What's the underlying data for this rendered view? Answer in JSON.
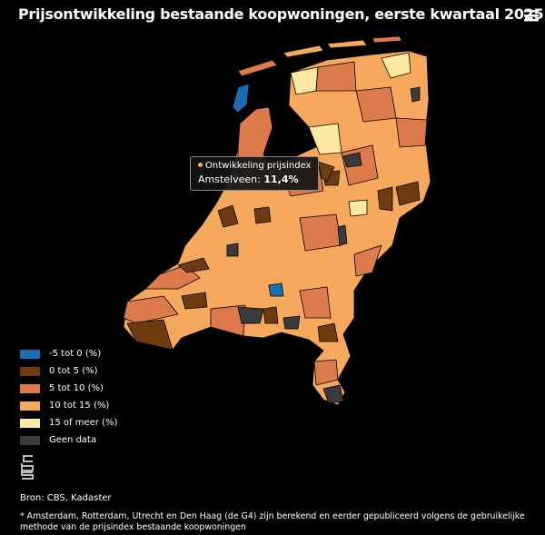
{
  "header": {
    "title": "Prijsontwikkeling bestaande koopwoningen, eerste kwartaal 2025"
  },
  "tooltip": {
    "title": "Ontwikkeling prijsindex",
    "label": "Amstelveen:",
    "value": "11,4%"
  },
  "legend": {
    "items": [
      {
        "label": "-5 tot 0 (%)",
        "color": "#1a6db3"
      },
      {
        "label": "0 tot 5 (%)",
        "color": "#6e3b0e"
      },
      {
        "label": "5 tot 10 (%)",
        "color": "#dc7a4c"
      },
      {
        "label": "10 tot 15 (%)",
        "color": "#f6a95c"
      },
      {
        "label": "15 of meer (%)",
        "color": "#fde9a2"
      },
      {
        "label": "Geen data",
        "color": "#3b3b3b"
      }
    ]
  },
  "footer": {
    "source": "Bron: CBS, Kadaster",
    "note": "* Amsterdam, Rotterdam, Utrecht en Den Haag (de G4) zijn berekend en eerder gepubliceerd volgens de gebruikelijke methode van de prijsindex bestaande koopwoningen"
  }
}
